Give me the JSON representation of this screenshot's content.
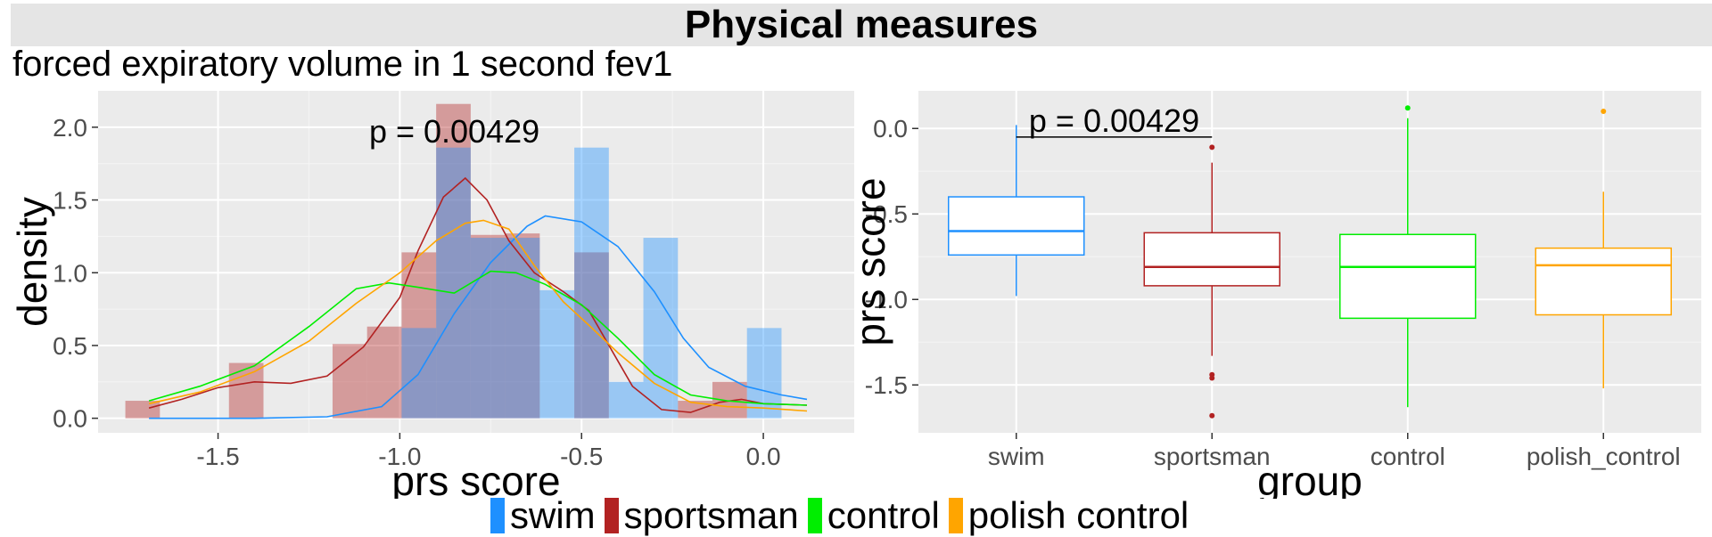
{
  "figure": {
    "title": "Physical measures",
    "subtitle": "forced expiratory volume in 1 second fev1"
  },
  "colors": {
    "swim": "#1e90ff",
    "sportsman": "#b22222",
    "control": "#00ee00",
    "polish_control": "#ffa500",
    "panel_bg": "#ebebeb",
    "grid": "#ffffff"
  },
  "legend": {
    "items": [
      {
        "key": "swim",
        "label": "swim"
      },
      {
        "key": "sportsman",
        "label": "sportsman"
      },
      {
        "key": "control",
        "label": "control"
      },
      {
        "key": "polish_control",
        "label": "polish  control"
      }
    ]
  },
  "chart_data": [
    {
      "type": "histogram-density",
      "xlabel": "prs score",
      "ylabel": "density",
      "xlim": [
        -1.83,
        0.25
      ],
      "ylim": [
        -0.1,
        2.25
      ],
      "xticks": [
        "-1.5",
        "-1.0",
        "-0.5",
        "0.0"
      ],
      "xtick_values": [
        -1.5,
        -1.0,
        -0.5,
        0.0
      ],
      "yticks": [
        "0.0",
        "0.5",
        "1.0",
        "1.5",
        "2.0"
      ],
      "ytick_values": [
        0.0,
        0.5,
        1.0,
        1.5,
        2.0
      ],
      "annotation": "p = 0.00429",
      "annotation_at": [
        -0.85,
        1.97
      ],
      "bin_width": 0.095,
      "histograms": [
        {
          "series": "sportsman",
          "bins": [
            {
              "x0": -1.755,
              "y": 0.12
            },
            {
              "x0": -1.47,
              "y": 0.38
            },
            {
              "x0": -1.185,
              "y": 0.51
            },
            {
              "x0": -1.09,
              "y": 0.63
            },
            {
              "x0": -0.995,
              "y": 1.14
            },
            {
              "x0": -0.9,
              "y": 2.16
            },
            {
              "x0": -0.805,
              "y": 1.26
            },
            {
              "x0": -0.71,
              "y": 1.27
            },
            {
              "x0": -0.52,
              "y": 1.14
            },
            {
              "x0": -0.235,
              "y": 0.12
            },
            {
              "x0": -0.14,
              "y": 0.25
            }
          ]
        },
        {
          "series": "swim",
          "bins": [
            {
              "x0": -0.995,
              "y": 0.62
            },
            {
              "x0": -0.9,
              "y": 1.86
            },
            {
              "x0": -0.805,
              "y": 1.24
            },
            {
              "x0": -0.71,
              "y": 1.24
            },
            {
              "x0": -0.615,
              "y": 0.88
            },
            {
              "x0": -0.52,
              "y": 1.86
            },
            {
              "x0": -0.425,
              "y": 0.25
            },
            {
              "x0": -0.33,
              "y": 1.24
            },
            {
              "x0": -0.045,
              "y": 0.62
            }
          ]
        }
      ],
      "densities": [
        {
          "series": "swim",
          "points": [
            [
              -1.69,
              0.0
            ],
            [
              -1.4,
              0.0
            ],
            [
              -1.2,
              0.01
            ],
            [
              -1.05,
              0.08
            ],
            [
              -0.95,
              0.3
            ],
            [
              -0.85,
              0.72
            ],
            [
              -0.75,
              1.07
            ],
            [
              -0.65,
              1.32
            ],
            [
              -0.6,
              1.39
            ],
            [
              -0.5,
              1.35
            ],
            [
              -0.4,
              1.18
            ],
            [
              -0.3,
              0.87
            ],
            [
              -0.22,
              0.55
            ],
            [
              -0.15,
              0.35
            ],
            [
              -0.05,
              0.22
            ],
            [
              0.05,
              0.16
            ],
            [
              0.12,
              0.13
            ]
          ]
        },
        {
          "series": "sportsman",
          "points": [
            [
              -1.69,
              0.07
            ],
            [
              -1.6,
              0.13
            ],
            [
              -1.5,
              0.21
            ],
            [
              -1.4,
              0.25
            ],
            [
              -1.3,
              0.24
            ],
            [
              -1.2,
              0.29
            ],
            [
              -1.1,
              0.49
            ],
            [
              -1.0,
              0.83
            ],
            [
              -0.95,
              1.15
            ],
            [
              -0.88,
              1.52
            ],
            [
              -0.82,
              1.65
            ],
            [
              -0.76,
              1.5
            ],
            [
              -0.7,
              1.22
            ],
            [
              -0.63,
              1.0
            ],
            [
              -0.55,
              0.87
            ],
            [
              -0.48,
              0.74
            ],
            [
              -0.42,
              0.48
            ],
            [
              -0.36,
              0.22
            ],
            [
              -0.28,
              0.06
            ],
            [
              -0.2,
              0.04
            ],
            [
              -0.12,
              0.11
            ],
            [
              -0.06,
              0.13
            ],
            [
              0.0,
              0.1
            ],
            [
              0.12,
              0.09
            ]
          ]
        },
        {
          "series": "control",
          "points": [
            [
              -1.69,
              0.12
            ],
            [
              -1.55,
              0.22
            ],
            [
              -1.4,
              0.36
            ],
            [
              -1.25,
              0.63
            ],
            [
              -1.12,
              0.89
            ],
            [
              -1.03,
              0.93
            ],
            [
              -0.95,
              0.9
            ],
            [
              -0.85,
              0.86
            ],
            [
              -0.75,
              1.01
            ],
            [
              -0.68,
              1.0
            ],
            [
              -0.6,
              0.92
            ],
            [
              -0.5,
              0.78
            ],
            [
              -0.4,
              0.55
            ],
            [
              -0.3,
              0.3
            ],
            [
              -0.2,
              0.16
            ],
            [
              -0.1,
              0.12
            ],
            [
              0.0,
              0.1
            ],
            [
              0.12,
              0.09
            ]
          ]
        },
        {
          "series": "polish_control",
          "points": [
            [
              -1.69,
              0.1
            ],
            [
              -1.55,
              0.18
            ],
            [
              -1.4,
              0.32
            ],
            [
              -1.25,
              0.53
            ],
            [
              -1.12,
              0.79
            ],
            [
              -1.0,
              1.0
            ],
            [
              -0.9,
              1.22
            ],
            [
              -0.82,
              1.34
            ],
            [
              -0.77,
              1.36
            ],
            [
              -0.7,
              1.3
            ],
            [
              -0.63,
              1.05
            ],
            [
              -0.55,
              0.8
            ],
            [
              -0.48,
              0.64
            ],
            [
              -0.4,
              0.45
            ],
            [
              -0.3,
              0.24
            ],
            [
              -0.2,
              0.11
            ],
            [
              -0.1,
              0.08
            ],
            [
              0.0,
              0.07
            ],
            [
              0.12,
              0.05
            ]
          ]
        }
      ]
    },
    {
      "type": "box",
      "xlabel": "group",
      "ylabel": "prs score",
      "categories": [
        "swim",
        "sportsman",
        "control",
        "polish_control"
      ],
      "ylim": [
        -1.78,
        0.22
      ],
      "yticks": [
        "0.0",
        "-0.5",
        "-1.0",
        "-1.5"
      ],
      "ytick_values": [
        0.0,
        -0.5,
        -1.0,
        -1.5
      ],
      "annotation": "p = 0.00429",
      "annotation_y": -0.05,
      "comparison": [
        "swim",
        "sportsman"
      ],
      "boxes": [
        {
          "series": "swim",
          "whisker_low": -0.98,
          "q1": -0.74,
          "median": -0.6,
          "q3": -0.4,
          "whisker_high": 0.02,
          "outliers": []
        },
        {
          "series": "sportsman",
          "whisker_low": -1.33,
          "q1": -0.92,
          "median": -0.81,
          "q3": -0.61,
          "whisker_high": -0.2,
          "outliers": [
            -0.11,
            -1.44,
            -1.46,
            -1.68
          ]
        },
        {
          "series": "control",
          "whisker_low": -1.63,
          "q1": -1.11,
          "median": -0.81,
          "q3": -0.62,
          "whisker_high": 0.06,
          "outliers": [
            0.12
          ]
        },
        {
          "series": "polish_control",
          "whisker_low": -1.52,
          "q1": -1.09,
          "median": -0.8,
          "q3": -0.7,
          "whisker_high": -0.37,
          "outliers": [
            0.1
          ]
        }
      ]
    }
  ]
}
